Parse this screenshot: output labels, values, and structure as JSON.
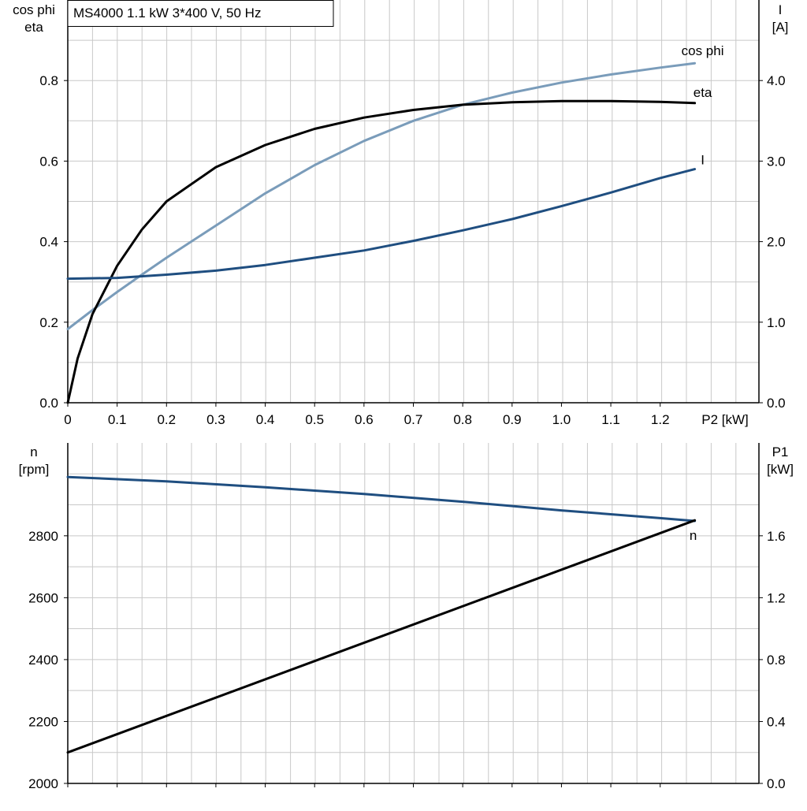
{
  "chart_data": [
    {
      "type": "line",
      "title": "MS4000   1.1 kW   3*400 V, 50 Hz",
      "xlabel": "P2 [kW]",
      "ylabel_lines": [
        "cos phi",
        "eta"
      ],
      "y2label_lines": [
        "I",
        "[A]"
      ],
      "xlim": [
        0,
        1.4
      ],
      "ylim": [
        0,
        1.0
      ],
      "y2lim": [
        0,
        5.0
      ],
      "x_ticks": [
        0,
        0.1,
        0.2,
        0.3,
        0.4,
        0.5,
        0.6,
        0.7,
        0.8,
        0.9,
        1.0,
        1.1,
        1.2
      ],
      "x_tick_labels": [
        "0",
        "0.1",
        "0.2",
        "0.3",
        "0.4",
        "0.5",
        "0.6",
        "0.7",
        "0.8",
        "0.9",
        "1.0",
        "1.1",
        "1.2"
      ],
      "y_ticks": [
        0,
        0.2,
        0.4,
        0.6,
        0.8
      ],
      "y_tick_labels": [
        "0.0",
        "0.2",
        "0.4",
        "0.6",
        "0.8"
      ],
      "y2_ticks": [
        0,
        1.0,
        2.0,
        3.0,
        4.0
      ],
      "y2_tick_labels": [
        "0.0",
        "1.0",
        "2.0",
        "3.0",
        "4.0"
      ],
      "grid": true,
      "series": [
        {
          "name": "cos phi",
          "axis": "left",
          "color": "#7a9cba",
          "x": [
            0,
            0.05,
            0.1,
            0.15,
            0.2,
            0.3,
            0.4,
            0.5,
            0.6,
            0.7,
            0.8,
            0.9,
            1.0,
            1.1,
            1.2,
            1.27
          ],
          "y": [
            0.183,
            0.23,
            0.275,
            0.318,
            0.36,
            0.44,
            0.52,
            0.59,
            0.65,
            0.7,
            0.74,
            0.77,
            0.795,
            0.815,
            0.832,
            0.843
          ]
        },
        {
          "name": "eta",
          "axis": "left",
          "color": "#000000",
          "x": [
            0,
            0.02,
            0.05,
            0.1,
            0.15,
            0.2,
            0.3,
            0.4,
            0.5,
            0.6,
            0.7,
            0.8,
            0.9,
            1.0,
            1.1,
            1.2,
            1.27
          ],
          "y": [
            0.0,
            0.11,
            0.22,
            0.34,
            0.43,
            0.5,
            0.585,
            0.64,
            0.68,
            0.708,
            0.727,
            0.74,
            0.746,
            0.749,
            0.749,
            0.747,
            0.744
          ]
        },
        {
          "name": "I",
          "axis": "right",
          "color": "#1f4e80",
          "x": [
            0,
            0.1,
            0.2,
            0.3,
            0.4,
            0.5,
            0.6,
            0.7,
            0.8,
            0.9,
            1.0,
            1.1,
            1.2,
            1.27
          ],
          "y": [
            1.54,
            1.55,
            1.59,
            1.64,
            1.71,
            1.8,
            1.89,
            2.01,
            2.14,
            2.28,
            2.44,
            2.61,
            2.79,
            2.9
          ]
        }
      ]
    },
    {
      "type": "line",
      "xlim": [
        0,
        1.4
      ],
      "ylabel_lines": [
        "n",
        "[rpm]"
      ],
      "y2label_lines": [
        "P1",
        "[kW]"
      ],
      "ylim": [
        2000,
        3100
      ],
      "y2lim": [
        0,
        2.2
      ],
      "x_ticks": [
        0,
        0.1,
        0.2,
        0.3,
        0.4,
        0.5,
        0.6,
        0.7,
        0.8,
        0.9,
        1.0,
        1.1,
        1.2
      ],
      "y_ticks": [
        2000,
        2200,
        2400,
        2600,
        2800
      ],
      "y_tick_labels": [
        "2000",
        "2200",
        "2400",
        "2600",
        "2800"
      ],
      "y2_ticks": [
        0,
        0.4,
        0.8,
        1.2,
        1.6
      ],
      "y2_tick_labels": [
        "0.0",
        "0.4",
        "0.8",
        "1.2",
        "1.6"
      ],
      "grid": true,
      "series": [
        {
          "name": "n",
          "axis": "left",
          "color": "#1f4e80",
          "x": [
            0,
            0.2,
            0.4,
            0.6,
            0.8,
            1.0,
            1.2,
            1.27
          ],
          "y": [
            2990,
            2976,
            2957,
            2935,
            2910,
            2882,
            2857,
            2848
          ]
        },
        {
          "name": "",
          "axis": "right",
          "color": "#000000",
          "x": [
            0,
            1.27
          ],
          "y": [
            0.2,
            1.7
          ]
        }
      ]
    }
  ]
}
